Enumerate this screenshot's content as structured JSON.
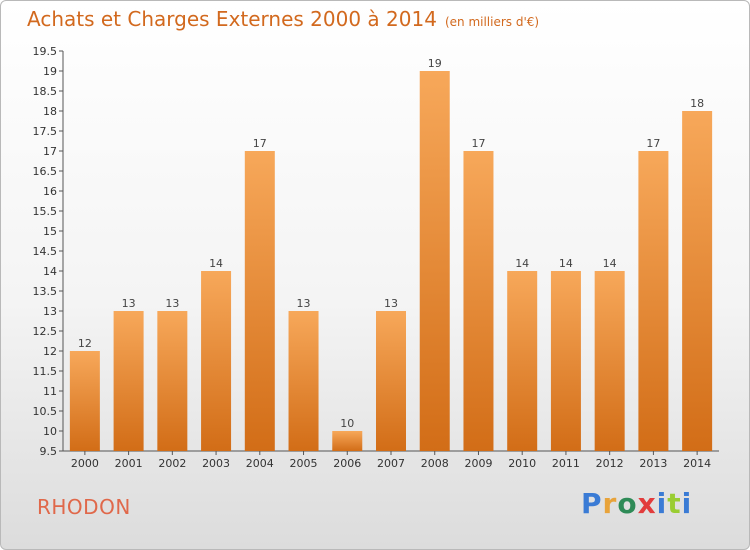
{
  "header": {
    "title": "Achats et Charges Externes 2000 à 2014",
    "subtitle": "(en milliers d'€)"
  },
  "footer": {
    "location": "RHODON",
    "brand": "Proxiti",
    "brand_colors": [
      "#3a7bd5",
      "#e8a33a",
      "#2e8b57",
      "#e23c3c",
      "#3a7bd5",
      "#9acd32",
      "#3a7bd5"
    ]
  },
  "colors": {
    "bar_top": "#f7a85a",
    "bar_bottom": "#d26d17",
    "title": "#d2691e",
    "location": "#e0684a"
  },
  "chart_data": {
    "type": "bar",
    "categories": [
      "2000",
      "2001",
      "2002",
      "2003",
      "2004",
      "2005",
      "2006",
      "2007",
      "2008",
      "2009",
      "2010",
      "2011",
      "2012",
      "2013",
      "2014"
    ],
    "values": [
      12,
      13,
      13,
      14,
      17,
      13,
      10,
      13,
      19,
      17,
      14,
      14,
      14,
      17,
      18
    ],
    "data_labels": [
      "12",
      "13",
      "13",
      "14",
      "17",
      "13",
      "10",
      "13",
      "19",
      "17",
      "14",
      "14",
      "14",
      "17",
      "18"
    ],
    "ylim": [
      9.5,
      19.5
    ],
    "yticks": [
      "9.5",
      "10",
      "10.5",
      "11",
      "11.5",
      "12",
      "12.5",
      "13",
      "13.5",
      "14",
      "14.5",
      "15",
      "15.5",
      "16",
      "16.5",
      "17",
      "17.5",
      "18",
      "18.5",
      "19",
      "19.5"
    ],
    "ytick_step": 0.5,
    "grid": false,
    "legend": "none"
  }
}
